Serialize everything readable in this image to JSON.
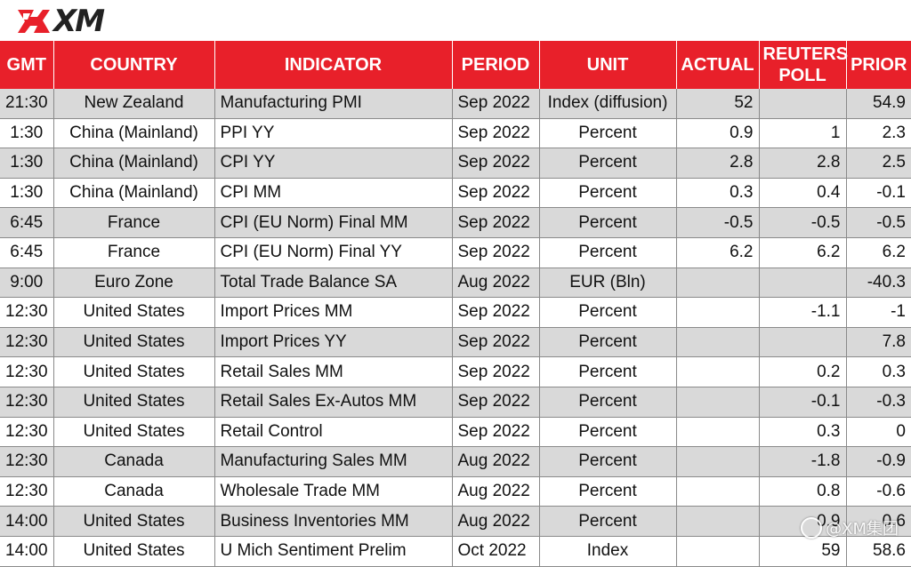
{
  "brand": {
    "logo_text": "XM",
    "accent": "#e8202a"
  },
  "table": {
    "headers": {
      "gmt": "GMT",
      "country": "COUNTRY",
      "indicator": "INDICATOR",
      "period": "PERIOD",
      "unit": "UNIT",
      "actual": "ACTUAL",
      "poll_line1": "REUTERS",
      "poll_line2": "POLL",
      "prior": "PRIOR"
    },
    "rows": [
      {
        "gmt": "21:30",
        "country": "New Zealand",
        "indicator": "Manufacturing PMI",
        "period": "Sep 2022",
        "unit": "Index (diffusion)",
        "actual": "52",
        "poll": "",
        "prior": "54.9"
      },
      {
        "gmt": "1:30",
        "country": "China (Mainland)",
        "indicator": "PPI YY",
        "period": "Sep 2022",
        "unit": "Percent",
        "actual": "0.9",
        "poll": "1",
        "prior": "2.3"
      },
      {
        "gmt": "1:30",
        "country": "China (Mainland)",
        "indicator": "CPI YY",
        "period": "Sep 2022",
        "unit": "Percent",
        "actual": "2.8",
        "poll": "2.8",
        "prior": "2.5"
      },
      {
        "gmt": "1:30",
        "country": "China (Mainland)",
        "indicator": "CPI MM",
        "period": "Sep 2022",
        "unit": "Percent",
        "actual": "0.3",
        "poll": "0.4",
        "prior": "-0.1"
      },
      {
        "gmt": "6:45",
        "country": "France",
        "indicator": "CPI (EU Norm) Final MM",
        "period": "Sep 2022",
        "unit": "Percent",
        "actual": "-0.5",
        "poll": "-0.5",
        "prior": "-0.5"
      },
      {
        "gmt": "6:45",
        "country": "France",
        "indicator": "CPI (EU Norm) Final YY",
        "period": "Sep 2022",
        "unit": "Percent",
        "actual": "6.2",
        "poll": "6.2",
        "prior": "6.2"
      },
      {
        "gmt": "9:00",
        "country": "Euro Zone",
        "indicator": "Total Trade Balance SA",
        "period": "Aug 2022",
        "unit": "EUR (Bln)",
        "actual": "",
        "poll": "",
        "prior": "-40.3"
      },
      {
        "gmt": "12:30",
        "country": "United States",
        "indicator": "Import Prices MM",
        "period": "Sep 2022",
        "unit": "Percent",
        "actual": "",
        "poll": "-1.1",
        "prior": "-1"
      },
      {
        "gmt": "12:30",
        "country": "United States",
        "indicator": "Import Prices YY",
        "period": "Sep 2022",
        "unit": "Percent",
        "actual": "",
        "poll": "",
        "prior": "7.8"
      },
      {
        "gmt": "12:30",
        "country": "United States",
        "indicator": "Retail Sales MM",
        "period": "Sep 2022",
        "unit": "Percent",
        "actual": "",
        "poll": "0.2",
        "prior": "0.3"
      },
      {
        "gmt": "12:30",
        "country": "United States",
        "indicator": "Retail Sales Ex-Autos MM",
        "period": "Sep 2022",
        "unit": "Percent",
        "actual": "",
        "poll": "-0.1",
        "prior": "-0.3"
      },
      {
        "gmt": "12:30",
        "country": "United States",
        "indicator": "Retail Control",
        "period": "Sep 2022",
        "unit": "Percent",
        "actual": "",
        "poll": "0.3",
        "prior": "0"
      },
      {
        "gmt": "12:30",
        "country": "Canada",
        "indicator": "Manufacturing Sales MM",
        "period": "Aug 2022",
        "unit": "Percent",
        "actual": "",
        "poll": "-1.8",
        "prior": "-0.9"
      },
      {
        "gmt": "12:30",
        "country": "Canada",
        "indicator": "Wholesale Trade MM",
        "period": "Aug 2022",
        "unit": "Percent",
        "actual": "",
        "poll": "0.8",
        "prior": "-0.6"
      },
      {
        "gmt": "14:00",
        "country": "United States",
        "indicator": "Business Inventories MM",
        "period": "Aug 2022",
        "unit": "Percent",
        "actual": "",
        "poll": "0.9",
        "prior": "0.6"
      },
      {
        "gmt": "14:00",
        "country": "United States",
        "indicator": "U Mich Sentiment Prelim",
        "period": "Oct 2022",
        "unit": "Index",
        "actual": "",
        "poll": "59",
        "prior": "58.6"
      }
    ]
  },
  "watermark": {
    "text": "@XM集团"
  }
}
